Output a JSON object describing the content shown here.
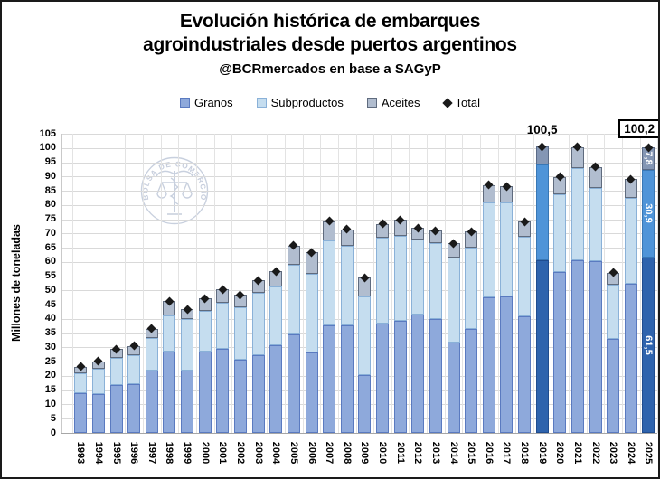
{
  "header": {
    "title_line1": "Evolución histórica de embarques",
    "title_line2": "agroindustriales desde puertos argentinos",
    "subtitle": "@BCRmercados en base a SAGyP"
  },
  "legend": {
    "items": [
      {
        "label": "Granos"
      },
      {
        "label": "Subproductos"
      },
      {
        "label": "Aceites"
      },
      {
        "label": "Total"
      }
    ]
  },
  "watermark": {
    "text": "BOLSA DE COMERCIO DE ROSARIO"
  },
  "y_axis": {
    "title": "Millones de toneladas"
  },
  "chart_data": {
    "type": "bar",
    "stacked": true,
    "title": "Evolución histórica de embarques agroindustriales desde puertos argentinos",
    "subtitle": "@BCRmercados en base a SAGyP",
    "xlabel": "",
    "ylabel": "Millones de toneladas",
    "ylim": [
      0,
      105
    ],
    "ytick_step": 5,
    "grid": true,
    "legend_position": "top",
    "categories": [
      "1993",
      "1994",
      "1995",
      "1996",
      "1997",
      "1998",
      "1999",
      "2000",
      "2001",
      "2002",
      "2003",
      "2004",
      "2005",
      "2006",
      "2007",
      "2008",
      "2009",
      "2010",
      "2011",
      "2012",
      "2013",
      "2014",
      "2015",
      "2016",
      "2017",
      "2018",
      "2019",
      "2020",
      "2021",
      "2022",
      "2023",
      "2024",
      "2025"
    ],
    "series": [
      {
        "name": "Granos",
        "color": "#8ea9db",
        "border": "#5a7ac0",
        "highlight_color": "#2e63ad",
        "highlight_border": "#1f4c8f",
        "values": [
          13.8,
          13.6,
          16.8,
          17.0,
          22.0,
          28.4,
          22.0,
          28.5,
          29.5,
          25.8,
          27.4,
          30.8,
          34.7,
          28.1,
          37.6,
          37.6,
          20.4,
          38.3,
          39.4,
          41.5,
          39.9,
          31.6,
          36.5,
          47.5,
          48.0,
          41.0,
          60.5,
          56.4,
          60.5,
          60.4,
          32.9,
          52.4,
          61.5
        ]
      },
      {
        "name": "Subproductos",
        "color": "#c5ddef",
        "border": "#8ab1d8",
        "highlight_color": "#4f94d8",
        "highlight_border": "#3877b5",
        "values": [
          7.1,
          8.8,
          9.4,
          10.3,
          11.2,
          12.9,
          17.9,
          14.4,
          16.1,
          18.2,
          21.9,
          20.6,
          24.3,
          27.7,
          30.0,
          28.0,
          27.6,
          30.2,
          29.8,
          26.3,
          26.8,
          29.8,
          28.4,
          33.5,
          33.0,
          27.8,
          33.6,
          27.5,
          32.4,
          25.6,
          19.2,
          30.0,
          30.9
        ]
      },
      {
        "name": "Aceites",
        "color": "#b1bdcf",
        "border": "#5f6b7e",
        "highlight_color": "#8496b4",
        "highlight_border": "#5a6a86",
        "values": [
          2.4,
          2.7,
          3.2,
          3.2,
          3.4,
          4.9,
          3.5,
          4.3,
          4.8,
          4.5,
          4.2,
          5.3,
          6.8,
          7.5,
          6.7,
          5.9,
          6.5,
          4.8,
          5.6,
          4.1,
          4.3,
          5.1,
          5.8,
          6.0,
          5.5,
          5.4,
          6.4,
          5.9,
          7.5,
          7.4,
          4.2,
          6.7,
          7.8
        ]
      }
    ],
    "totals": [
      23.3,
      25.1,
      29.4,
      30.5,
      36.6,
      46.2,
      43.4,
      47.2,
      50.4,
      48.5,
      53.5,
      56.7,
      65.8,
      63.3,
      74.3,
      71.5,
      54.5,
      73.3,
      74.8,
      71.9,
      71.0,
      66.5,
      70.7,
      87.0,
      86.5,
      74.2,
      100.5,
      89.8,
      100.4,
      93.4,
      56.3,
      89.1,
      100.2
    ],
    "total_series_name": "Total",
    "total_marker": "diamond",
    "total_marker_color": "#1a1a1a",
    "highlight_categories": [
      "2019",
      "2025"
    ],
    "annotations": [
      {
        "category": "2019",
        "text": "100,5",
        "boxed": false
      },
      {
        "category": "2025",
        "text": "100,2",
        "boxed": true
      }
    ],
    "segment_labels": {
      "2025": [
        "61,5",
        "30,9",
        "7,8"
      ]
    }
  }
}
